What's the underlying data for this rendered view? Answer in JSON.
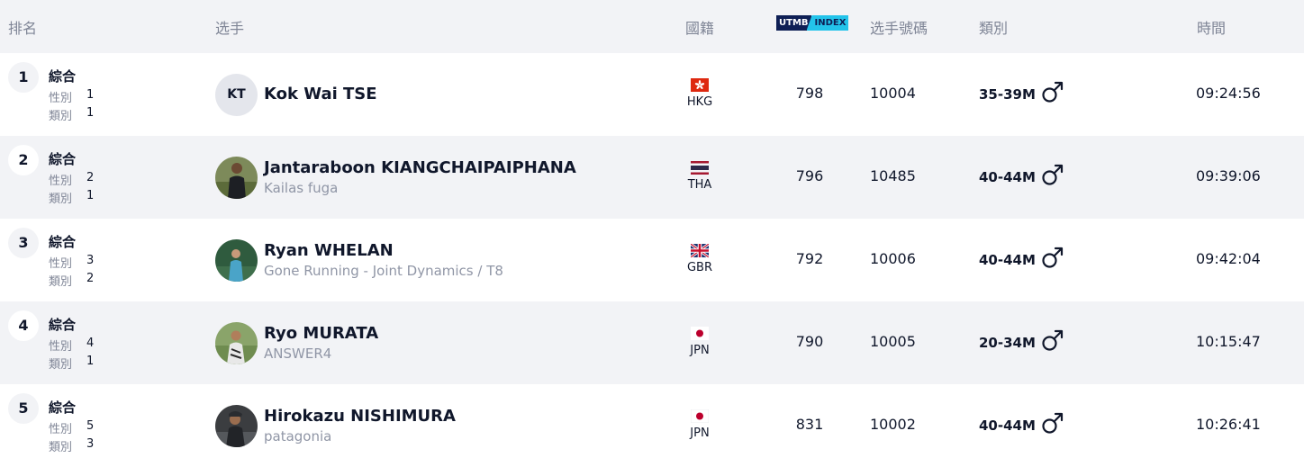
{
  "header": {
    "rank": "排名",
    "runner": "选手",
    "nationality": "國籍",
    "utmb_a": "UTMB",
    "utmb_b": "INDEX",
    "bib": "选手號碼",
    "category": "類別",
    "time": "時間"
  },
  "labels": {
    "overall": "綜合",
    "gender": "性別",
    "category": "類別"
  },
  "rows": [
    {
      "rank": "1",
      "gender_rank": "1",
      "cat_rank": "1",
      "initials": "KT",
      "name": "Kok Wai TSE",
      "team": "",
      "nat": "HKG",
      "index": "798",
      "bib": "10004",
      "cat": "35-39M",
      "time": "09:24:56"
    },
    {
      "rank": "2",
      "gender_rank": "2",
      "cat_rank": "1",
      "initials": "",
      "name": "Jantaraboon KIANGCHAIPAIPHANA",
      "team": "Kailas fuga",
      "nat": "THA",
      "index": "796",
      "bib": "10485",
      "cat": "40-44M",
      "time": "09:39:06"
    },
    {
      "rank": "3",
      "gender_rank": "3",
      "cat_rank": "2",
      "initials": "",
      "name": "Ryan WHELAN",
      "team": "Gone Running - Joint Dynamics / T8",
      "nat": "GBR",
      "index": "792",
      "bib": "10006",
      "cat": "40-44M",
      "time": "09:42:04"
    },
    {
      "rank": "4",
      "gender_rank": "4",
      "cat_rank": "1",
      "initials": "",
      "name": "Ryo MURATA",
      "team": "ANSWER4",
      "nat": "JPN",
      "index": "790",
      "bib": "10005",
      "cat": "20-34M",
      "time": "10:15:47"
    },
    {
      "rank": "5",
      "gender_rank": "5",
      "cat_rank": "3",
      "initials": "",
      "name": "Hirokazu NISHIMURA",
      "team": "patagonia",
      "nat": "JPN",
      "index": "831",
      "bib": "10002",
      "cat": "40-44M",
      "time": "10:26:41"
    }
  ],
  "icons": {
    "gender": "male-symbol-icon",
    "flags": [
      "hong-kong-flag-icon",
      "thailand-flag-icon",
      "uk-flag-icon",
      "japan-flag-icon",
      "japan-flag-icon"
    ]
  }
}
